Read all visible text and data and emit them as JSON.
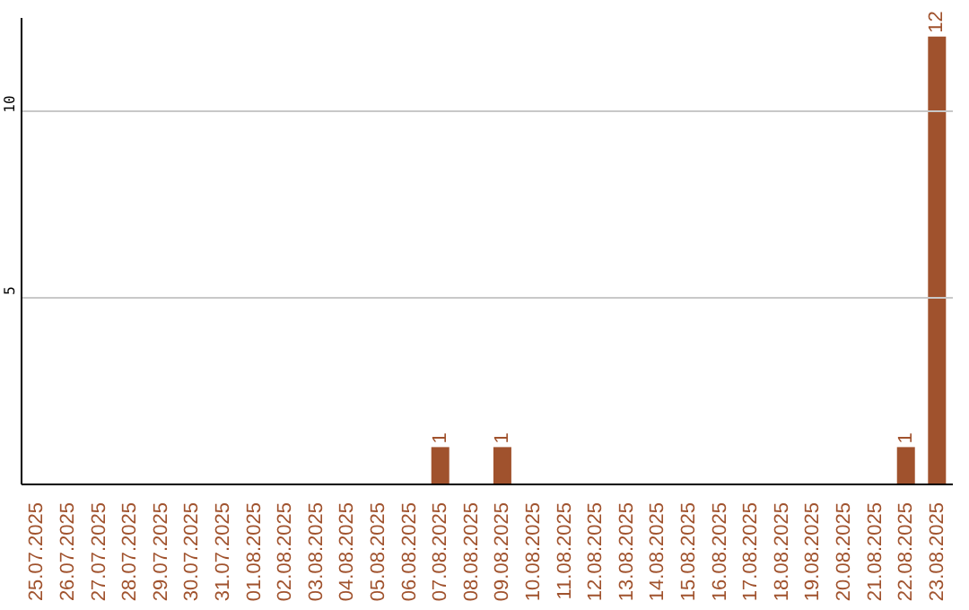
{
  "chart_data": {
    "type": "bar",
    "categories": [
      "25.07.2025",
      "26.07.2025",
      "27.07.2025",
      "28.07.2025",
      "29.07.2025",
      "30.07.2025",
      "31.07.2025",
      "01.08.2025",
      "02.08.2025",
      "03.08.2025",
      "04.08.2025",
      "05.08.2025",
      "06.08.2025",
      "07.08.2025",
      "08.08.2025",
      "09.08.2025",
      "10.08.2025",
      "11.08.2025",
      "12.08.2025",
      "13.08.2025",
      "14.08.2025",
      "15.08.2025",
      "16.08.2025",
      "17.08.2025",
      "18.08.2025",
      "19.08.2025",
      "20.08.2025",
      "21.08.2025",
      "22.08.2025",
      "23.08.2025"
    ],
    "values": [
      0,
      0,
      0,
      0,
      0,
      0,
      0,
      0,
      0,
      0,
      0,
      0,
      0,
      1,
      0,
      1,
      0,
      0,
      0,
      0,
      0,
      0,
      0,
      0,
      0,
      0,
      0,
      0,
      1,
      12
    ],
    "value_labels": [
      null,
      null,
      null,
      null,
      null,
      null,
      null,
      null,
      null,
      null,
      null,
      null,
      null,
      "1",
      null,
      "1",
      null,
      null,
      null,
      null,
      null,
      null,
      null,
      null,
      null,
      null,
      null,
      null,
      "1",
      "12"
    ],
    "color": "#a0522d",
    "ylim": [
      0,
      12.5
    ],
    "yticks": [
      5,
      10
    ],
    "grid": "y"
  }
}
